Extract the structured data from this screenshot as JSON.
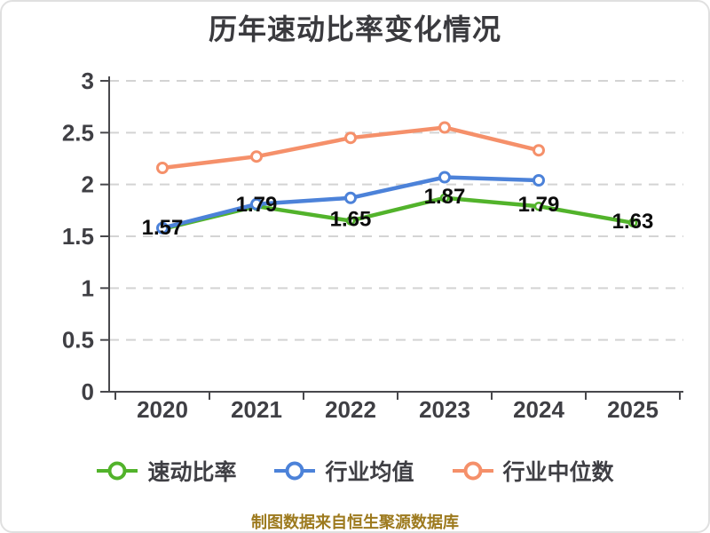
{
  "title": "历年速动比率变化情况",
  "footer": "制图数据来自恒生聚源数据库",
  "colors": {
    "title": "#3a3a3e",
    "axis": "#48484c",
    "grid": "#d4d4d4",
    "tick_label": "#3f3f44",
    "data_label": "#0c0c0c",
    "footer_text": "#9d7a1e",
    "quick_ratio_green": "#52b32b",
    "industry_average_blue": "#4c82d9",
    "industry_median_orange": "#f5906a"
  },
  "chart_data": {
    "type": "line",
    "title": "历年速动比率变化情况",
    "categories": [
      "2020",
      "2021",
      "2022",
      "2023",
      "2024",
      "2025"
    ],
    "series": [
      {
        "key": "quick-ratio",
        "name": "速动比率",
        "color": "#52b32b",
        "values": [
          1.57,
          1.79,
          1.65,
          1.87,
          1.79,
          1.63
        ],
        "data_labels": true
      },
      {
        "key": "industry-average",
        "name": "行业均值",
        "color": "#4c82d9",
        "values": [
          1.58,
          1.81,
          1.87,
          2.07,
          2.04,
          null
        ],
        "data_labels": false
      },
      {
        "key": "industry-median",
        "name": "行业中位数",
        "color": "#f5906a",
        "values": [
          2.16,
          2.27,
          2.45,
          2.55,
          2.33,
          null
        ],
        "data_labels": false
      }
    ],
    "ylim": [
      0,
      3
    ],
    "yticks": [
      0,
      0.5,
      1,
      1.5,
      2,
      2.5,
      3
    ],
    "grid": "horizontal-dashed",
    "legend_position": "bottom",
    "data_label_format": "2-decimals"
  }
}
